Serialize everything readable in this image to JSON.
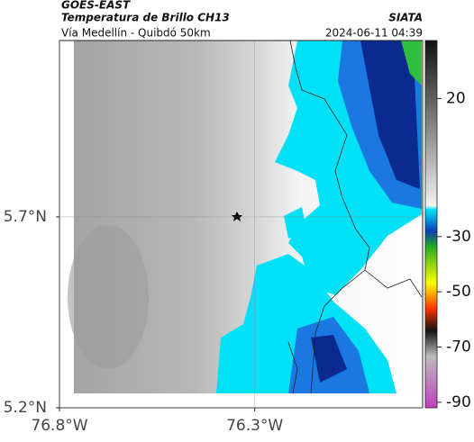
{
  "chart_data": {
    "type": "map",
    "source": "GOES-EAST",
    "title": "Temperatura de Brillo CH13",
    "credit": "SIATA",
    "subtitle": "Vía Medellín - Quibdó 50km",
    "timestamp": "2024-06-11 04:39",
    "xlim": [
      -76.8,
      -75.87
    ],
    "ylim": [
      5.2,
      6.162
    ],
    "xticks": [
      {
        "value": -76.8,
        "label": "76.8°W"
      },
      {
        "value": -76.3,
        "label": "76.3°W"
      }
    ],
    "yticks": [
      {
        "value": 5.7,
        "label": "5.7°N"
      },
      {
        "value": 5.2,
        "label": "5.2°N"
      }
    ],
    "grid": true,
    "colorbar": {
      "lim": [
        41,
        -92
      ],
      "ticks": [
        20,
        -30,
        -50,
        -70,
        -90
      ]
    }
  }
}
